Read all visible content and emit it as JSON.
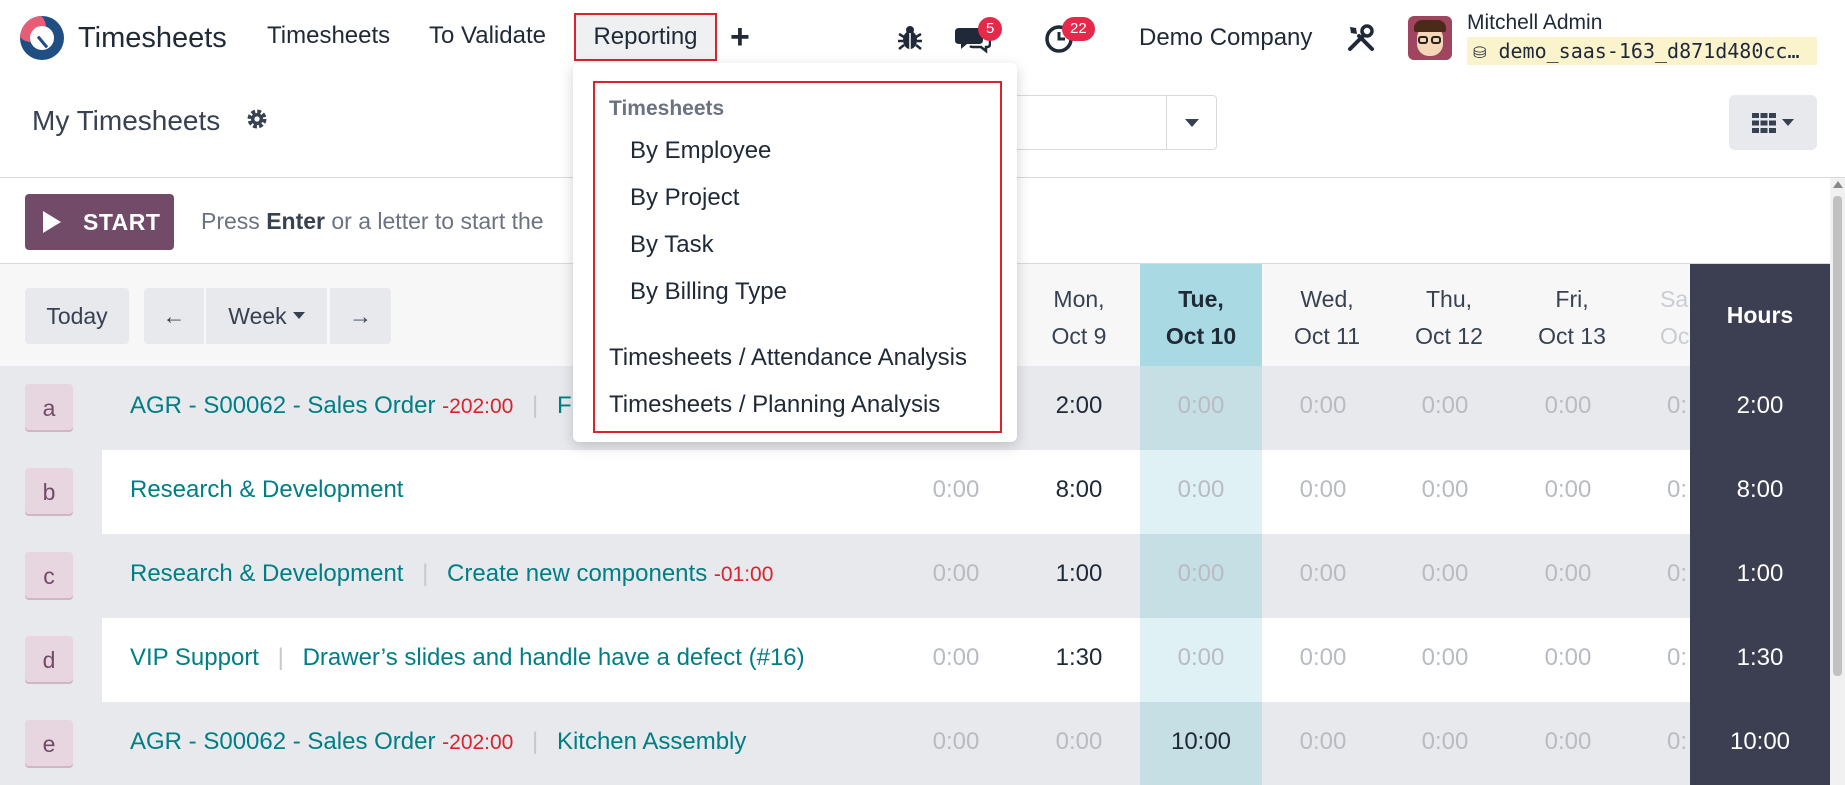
{
  "navbar": {
    "app_name": "Timesheets",
    "menu": [
      "Timesheets",
      "To Validate"
    ],
    "reporting_label": "Reporting",
    "plus_label": "+",
    "messages_count": "5",
    "activities_count": "22",
    "company": "Demo Company",
    "user_name": "Mitchell Admin",
    "database": "demo_saas-163_d871d480cc…",
    "icons": [
      "bug-icon",
      "chat-icon",
      "clock-icon",
      "tools-icon",
      "database-icon"
    ]
  },
  "control": {
    "title": "My Timesheets"
  },
  "start_bar": {
    "button_label": "START",
    "hint_prefix": "Press ",
    "hint_key": "Enter",
    "hint_suffix": " or a letter to start the"
  },
  "grid": {
    "today_label": "Today",
    "prev_label": "←",
    "scale_label": "Week",
    "next_label": "→",
    "days": [
      {
        "name": "Mon,",
        "date": "Oct 9"
      },
      {
        "name": "Tue,",
        "date": "Oct 10"
      },
      {
        "name": "Wed,",
        "date": "Oct 11"
      },
      {
        "name": "Thu,",
        "date": "Oct 12"
      },
      {
        "name": "Fri,",
        "date": "Oct 13"
      },
      {
        "name": "Sa",
        "date": "Oc"
      }
    ],
    "hours_label": "Hours",
    "rows": [
      {
        "letter": "a",
        "project": "AGR - S00062 - Sales Order",
        "project_overtime": "-202:00",
        "task": "Fu",
        "task_overtime": "",
        "values": [
          "",
          "2:00",
          "0:00",
          "0:00",
          "0:00",
          "0:00",
          "0:"
        ],
        "total": "2:00"
      },
      {
        "letter": "b",
        "project": "Research & Development",
        "project_overtime": "",
        "task": "",
        "task_overtime": "",
        "values": [
          "0:00",
          "8:00",
          "0:00",
          "0:00",
          "0:00",
          "0:00",
          "0:"
        ],
        "total": "8:00"
      },
      {
        "letter": "c",
        "project": "Research & Development",
        "project_overtime": "",
        "task": "Create new components",
        "task_overtime": "-01:00",
        "values": [
          "0:00",
          "1:00",
          "0:00",
          "0:00",
          "0:00",
          "0:00",
          "0:"
        ],
        "total": "1:00"
      },
      {
        "letter": "d",
        "project": "VIP Support",
        "project_overtime": "",
        "task": "Drawer’s slides and handle have a defect (#16)",
        "task_overtime": "",
        "values": [
          "0:00",
          "1:30",
          "0:00",
          "0:00",
          "0:00",
          "0:00",
          "0:"
        ],
        "total": "1:30"
      },
      {
        "letter": "e",
        "project": "AGR - S00062 - Sales Order",
        "project_overtime": "-202:00",
        "task": "Kitchen Assembly",
        "task_overtime": "",
        "values": [
          "0:00",
          "0:00",
          "10:00",
          "0:00",
          "0:00",
          "0:00",
          "0:"
        ],
        "total": "10:00"
      }
    ]
  },
  "reporting_menu": {
    "section_header": "Timesheets",
    "section_items": [
      "By Employee",
      "By Project",
      "By Task",
      "By Billing Type"
    ],
    "extra_items": [
      "Timesheets / Attendance Analysis",
      "Timesheets / Planning Analysis"
    ]
  },
  "colors": {
    "brand": "#714b67",
    "link": "#017e84",
    "danger": "#d9232d",
    "today_band": "#a9d9e2",
    "hours_column": "#3c3f51"
  }
}
